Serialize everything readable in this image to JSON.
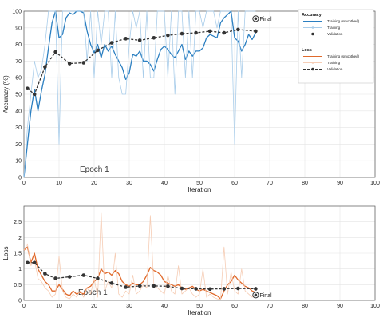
{
  "chart_data": [
    {
      "type": "line",
      "ylabel": "Accuracy (%)",
      "xlabel": "Iteration",
      "xlim": [
        0,
        100
      ],
      "ylim": [
        0,
        100
      ],
      "xticks": [
        0,
        10,
        20,
        30,
        40,
        50,
        60,
        70,
        80,
        90,
        100
      ],
      "yticks": [
        0,
        10,
        20,
        30,
        40,
        50,
        60,
        70,
        80,
        90,
        100
      ],
      "grid": true,
      "annotation": "Epoch 1",
      "final_label": "Final",
      "final_point": [
        66,
        95.5
      ],
      "series": [
        {
          "name": "Training (smoothed)",
          "color": "#2b7fc1",
          "style": "solid",
          "x": [
            0,
            1,
            2,
            3,
            4,
            5,
            6,
            7,
            8,
            9,
            10,
            11,
            12,
            13,
            14,
            15,
            16,
            17,
            18,
            19,
            20,
            21,
            22,
            23,
            24,
            25,
            26,
            27,
            28,
            29,
            30,
            31,
            32,
            33,
            34,
            35,
            36,
            37,
            38,
            39,
            40,
            41,
            42,
            43,
            44,
            45,
            46,
            47,
            48,
            49,
            50,
            51,
            52,
            53,
            54,
            55,
            56,
            57,
            58,
            59,
            60,
            61,
            62,
            63,
            64,
            65,
            66
          ],
          "values": [
            0,
            20,
            40,
            53,
            40,
            52,
            62,
            78,
            93,
            100,
            84,
            86,
            96,
            99,
            98,
            100,
            100,
            99,
            88,
            80,
            75,
            80,
            72,
            80,
            76,
            79,
            74,
            70,
            66,
            59,
            63,
            74,
            73,
            76,
            70,
            70,
            68,
            64,
            71,
            77,
            79,
            77,
            74,
            72,
            76,
            80,
            71,
            76,
            73,
            76,
            76,
            78,
            84,
            86,
            85,
            84,
            93,
            96,
            98,
            100,
            84,
            82,
            76,
            80,
            86,
            83,
            87
          ]
        },
        {
          "name": "Training",
          "color": "#a9cdea",
          "style": "solid",
          "x": [
            0,
            1,
            2,
            3,
            4,
            5,
            6,
            7,
            8,
            9,
            10,
            11,
            12,
            13,
            14,
            15,
            16,
            17,
            18,
            19,
            20,
            21,
            22,
            23,
            24,
            25,
            26,
            27,
            28,
            29,
            30,
            31,
            32,
            33,
            34,
            35,
            36,
            37,
            38,
            39,
            40,
            41,
            42,
            43,
            44,
            45,
            46,
            47,
            48,
            49,
            50,
            51,
            52,
            53,
            54,
            55,
            56,
            57,
            58,
            59,
            60,
            61,
            62,
            63,
            64,
            65,
            66
          ],
          "values": [
            0,
            30,
            50,
            70,
            60,
            65,
            80,
            100,
            100,
            100,
            20,
            100,
            100,
            100,
            100,
            100,
            100,
            100,
            70,
            100,
            60,
            100,
            80,
            100,
            100,
            60,
            100,
            60,
            50,
            50,
            80,
            100,
            90,
            100,
            60,
            100,
            60,
            60,
            100,
            100,
            100,
            60,
            100,
            50,
            100,
            100,
            60,
            100,
            60,
            100,
            100,
            90,
            100,
            100,
            100,
            90,
            100,
            100,
            100,
            100,
            20,
            100,
            60,
            100,
            100,
            100,
            100
          ]
        },
        {
          "name": "Validation",
          "color": "#333333",
          "style": "dashed",
          "x": [
            1,
            3,
            6,
            9,
            13,
            17,
            21,
            25,
            29,
            33,
            37,
            41,
            45,
            49,
            53,
            57,
            61,
            66
          ],
          "values": [
            53.5,
            50,
            66.5,
            75.5,
            68.5,
            69,
            76.5,
            81,
            83.5,
            82.5,
            84,
            85.5,
            86.5,
            87,
            88,
            87,
            89,
            88
          ]
        }
      ],
      "legend": {
        "placement": "top-right",
        "groups": [
          {
            "title": "Accuracy",
            "items": [
              "Training (smoothed)",
              "Training",
              "Validation"
            ]
          },
          {
            "title": "Loss",
            "items": [
              "Training (smoothed)",
              "Training",
              "Validation"
            ]
          }
        ]
      }
    },
    {
      "type": "line",
      "ylabel": "Loss",
      "xlabel": "Iteration",
      "xlim": [
        0,
        100
      ],
      "ylim": [
        0,
        3
      ],
      "xticks": [
        0,
        10,
        20,
        30,
        40,
        50,
        60,
        70,
        80,
        90,
        100
      ],
      "yticks": [
        0,
        0.5,
        1,
        1.5,
        2,
        2.5
      ],
      "ytick_labels": [
        "0",
        "0.5",
        "1",
        "1.5",
        "2",
        "2.5"
      ],
      "grid": true,
      "annotation": "Epoch 1",
      "final_label": "Final",
      "final_point": [
        66,
        0.17
      ],
      "series": [
        {
          "name": "Training (smoothed)",
          "color": "#e06a2c",
          "style": "solid",
          "x": [
            0,
            1,
            2,
            3,
            4,
            5,
            6,
            7,
            8,
            9,
            10,
            11,
            12,
            13,
            14,
            15,
            16,
            17,
            18,
            19,
            20,
            21,
            22,
            23,
            24,
            25,
            26,
            27,
            28,
            29,
            30,
            31,
            32,
            33,
            34,
            35,
            36,
            37,
            38,
            39,
            40,
            41,
            42,
            43,
            44,
            45,
            46,
            47,
            48,
            49,
            50,
            51,
            52,
            53,
            54,
            55,
            56,
            57,
            58,
            59,
            60,
            61,
            62,
            63,
            64,
            65,
            66
          ],
          "values": [
            1.6,
            1.7,
            1.2,
            1.5,
            1.0,
            0.8,
            0.6,
            0.5,
            0.3,
            0.3,
            0.5,
            0.35,
            0.2,
            0.15,
            0.3,
            0.2,
            0.25,
            0.2,
            0.4,
            0.45,
            0.6,
            0.7,
            1.0,
            0.85,
            0.9,
            0.8,
            0.95,
            0.85,
            0.6,
            0.5,
            0.45,
            0.55,
            0.5,
            0.5,
            0.6,
            0.8,
            1.05,
            0.95,
            0.9,
            0.8,
            0.6,
            0.55,
            0.5,
            0.45,
            0.5,
            0.4,
            0.35,
            0.4,
            0.45,
            0.35,
            0.3,
            0.35,
            0.3,
            0.25,
            0.2,
            0.15,
            0.05,
            0.3,
            0.5,
            0.6,
            0.8,
            0.65,
            0.55,
            0.45,
            0.4,
            0.3,
            0.25
          ]
        },
        {
          "name": "Training",
          "color": "#f6cdb5",
          "style": "solid",
          "x": [
            0,
            1,
            2,
            3,
            4,
            5,
            6,
            7,
            8,
            9,
            10,
            11,
            12,
            13,
            14,
            15,
            16,
            17,
            18,
            19,
            20,
            21,
            22,
            23,
            24,
            25,
            26,
            27,
            28,
            29,
            30,
            31,
            32,
            33,
            34,
            35,
            36,
            37,
            38,
            39,
            40,
            41,
            42,
            43,
            44,
            45,
            46,
            47,
            48,
            49,
            50,
            51,
            52,
            53,
            54,
            55,
            56,
            57,
            58,
            59,
            60,
            61,
            62,
            63,
            64,
            65,
            66
          ],
          "values": [
            1.6,
            1.8,
            1.1,
            1.3,
            0.7,
            0.6,
            0.4,
            0.3,
            0.1,
            0.2,
            1.4,
            0.3,
            0.1,
            0.05,
            0.2,
            0.1,
            0.3,
            0.1,
            0.4,
            0.2,
            0.7,
            0.1,
            2.8,
            0.3,
            0.6,
            0.4,
            1.5,
            0.2,
            0.1,
            0.3,
            0.2,
            0.8,
            0.2,
            0.3,
            0.5,
            0.4,
            2.7,
            0.5,
            0.4,
            0.3,
            0.2,
            0.8,
            0.3,
            0.2,
            1.1,
            0.2,
            0.3,
            0.4,
            0.2,
            0.1,
            0.2,
            1.0,
            0.1,
            0.2,
            0.1,
            0.05,
            0.02,
            1.7,
            0.2,
            0.9,
            0.3,
            0.2,
            1.0,
            0.3,
            0.2,
            0.1,
            0.2
          ]
        },
        {
          "name": "Validation",
          "color": "#333333",
          "style": "dashed",
          "x": [
            1,
            3,
            6,
            9,
            13,
            17,
            21,
            25,
            29,
            33,
            37,
            41,
            45,
            49,
            53,
            57,
            61,
            66
          ],
          "values": [
            1.2,
            1.2,
            0.85,
            0.7,
            0.75,
            0.8,
            0.7,
            0.55,
            0.42,
            0.46,
            0.46,
            0.45,
            0.38,
            0.37,
            0.36,
            0.37,
            0.38,
            0.37
          ]
        }
      ]
    }
  ]
}
